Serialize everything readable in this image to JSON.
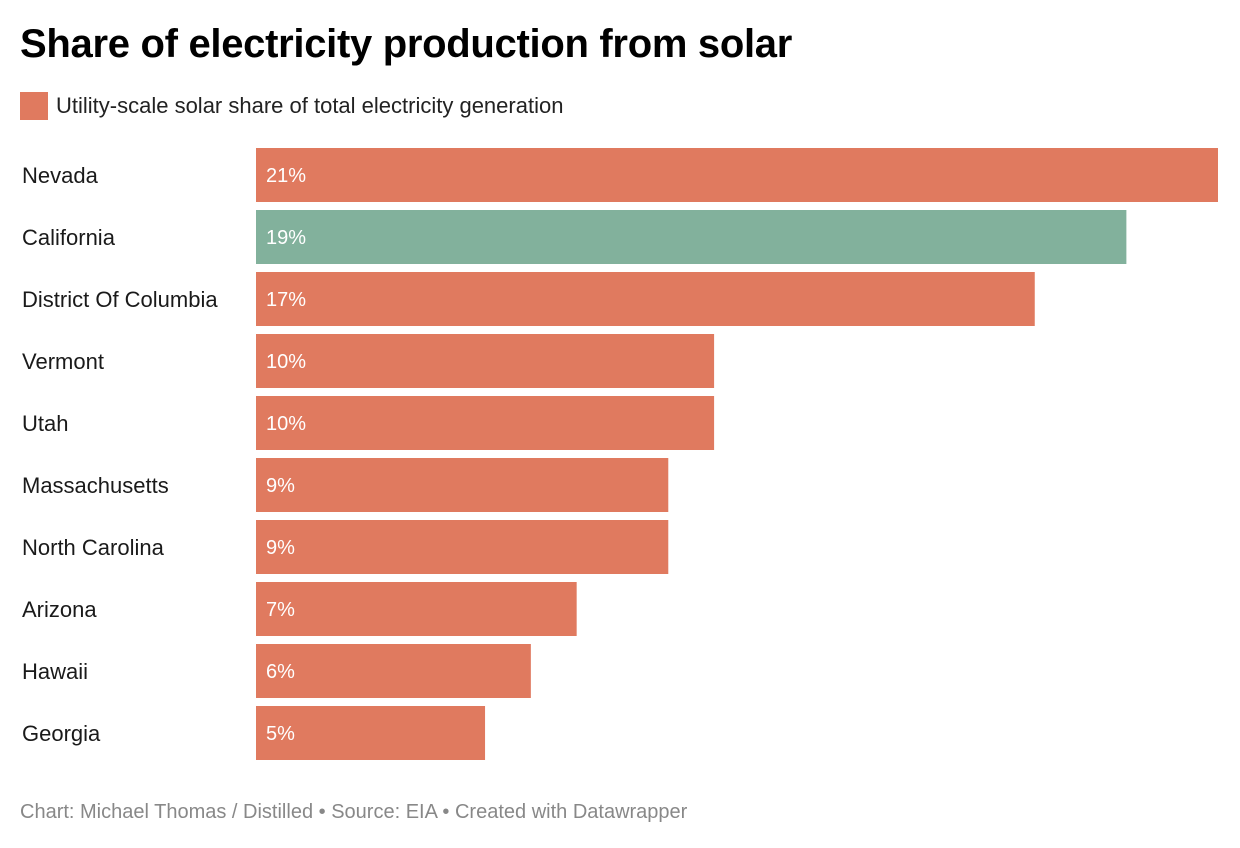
{
  "title": "Share of electricity production from solar",
  "legend": {
    "label": "Utility-scale solar share of total electricity generation",
    "color": "#e07a5f"
  },
  "highlight_color": "#82b19c",
  "label_color": "#ffffff",
  "footer": {
    "chart": "Chart: Michael Thomas / Distilled",
    "source": "Source: EIA",
    "tool": "Created with Datawrapper",
    "separator": "•"
  },
  "chart_data": {
    "type": "bar",
    "orientation": "horizontal",
    "categories": [
      "Nevada",
      "California",
      "District Of Columbia",
      "Vermont",
      "Utah",
      "Massachusetts",
      "North Carolina",
      "Arizona",
      "Hawaii",
      "Georgia"
    ],
    "values": [
      21,
      19,
      17,
      10,
      10,
      9,
      9,
      7,
      6,
      5
    ],
    "value_labels": [
      "21%",
      "19%",
      "17%",
      "10%",
      "10%",
      "9%",
      "9%",
      "7%",
      "6%",
      "5%"
    ],
    "highlighted": [
      "California"
    ],
    "xlim": [
      0,
      21
    ],
    "grid": false,
    "legend_position": "top-left"
  }
}
